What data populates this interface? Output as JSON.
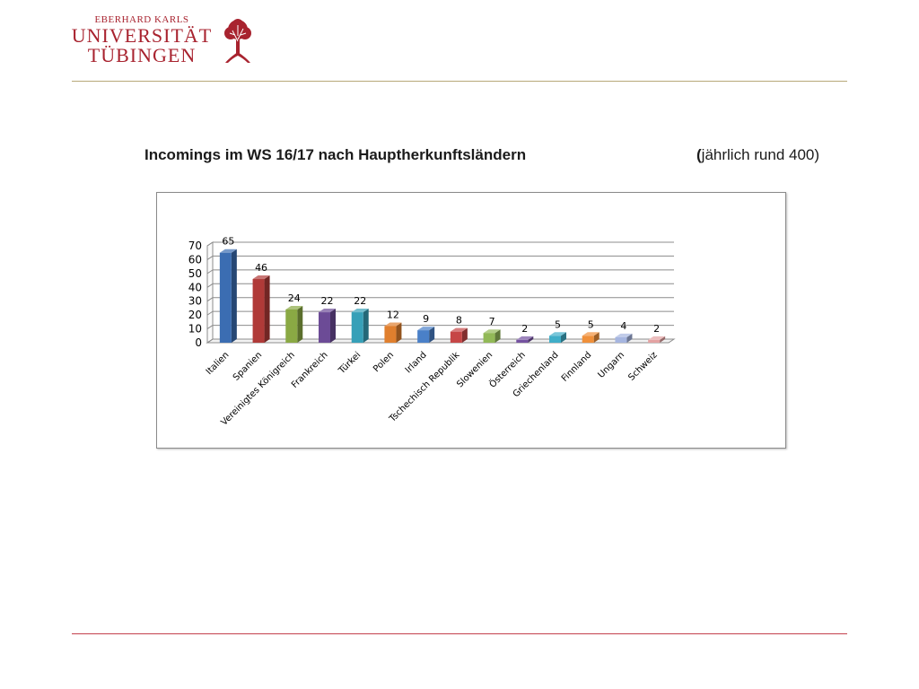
{
  "header": {
    "logo_line1": "EBERHARD KARLS",
    "logo_line2": "UNIVERSITÄT",
    "logo_line3": "TÜBINGEN",
    "logo_icon": "tree-icon",
    "brand_color": "#a8232f"
  },
  "slide": {
    "title": "Incomings im WS 16/17 nach Hauptherkunftsländern",
    "note_open": "(",
    "note_text": "jährlich rund 400)"
  },
  "chart_data": {
    "type": "bar",
    "categories": [
      "Italien",
      "Spanien",
      "Vereinigtes Königreich",
      "Frankreich",
      "Türkei",
      "Polen",
      "Irland",
      "Tschechisch Republik",
      "Slowenien",
      "Österreich",
      "Griechenland",
      "Finnland",
      "Ungarn",
      "Schweiz"
    ],
    "values": [
      65,
      46,
      24,
      22,
      22,
      12,
      9,
      8,
      7,
      2,
      5,
      5,
      4,
      2
    ],
    "colors": [
      "#3b6db2",
      "#b03a38",
      "#8aa944",
      "#6c4b96",
      "#36a0b8",
      "#e07f2e",
      "#4a80c8",
      "#c64646",
      "#92b957",
      "#7552a0",
      "#40aec8",
      "#f0903a",
      "#a6b6e0",
      "#e4a2a2"
    ],
    "yticks": [
      0,
      10,
      20,
      30,
      40,
      50,
      60,
      70
    ],
    "ylim": [
      0,
      70
    ],
    "grid": true,
    "legend": "none"
  }
}
